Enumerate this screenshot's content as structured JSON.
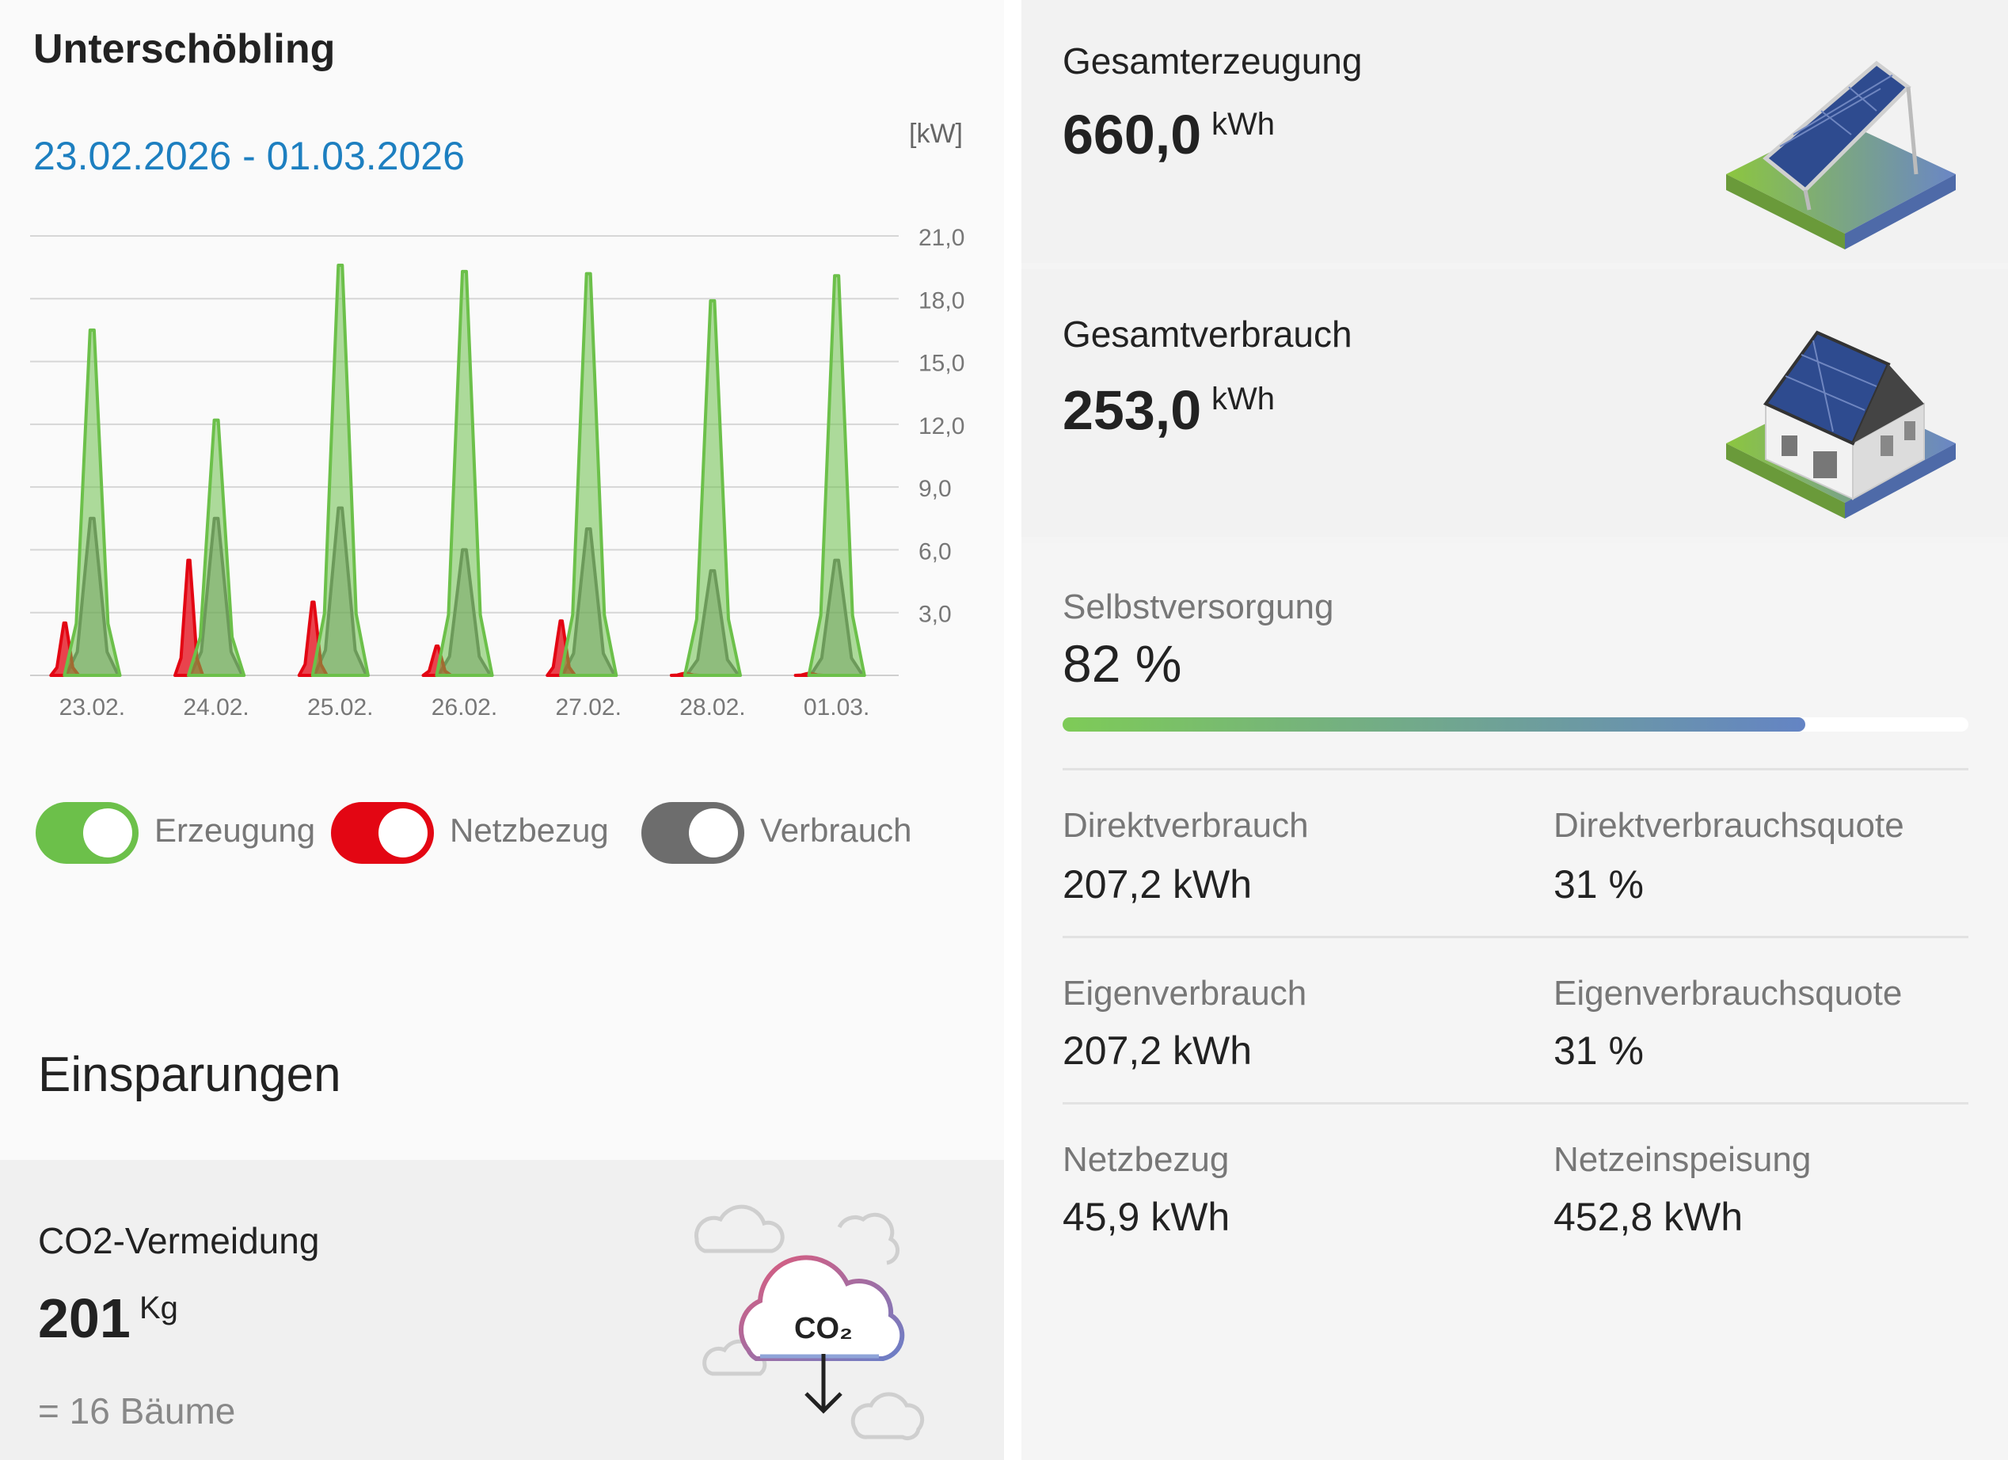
{
  "left": {
    "site_title": "Unterschöbling",
    "date_range": "23.02.2026 - 01.03.2026",
    "unit": "[kW]",
    "legend": [
      {
        "label": "Erzeugung",
        "color": "#6cc04a",
        "on": true
      },
      {
        "label": "Netzbezug",
        "color": "#e30613",
        "on": true
      },
      {
        "label": "Verbrauch",
        "color": "#6d6d6d",
        "on": true
      }
    ],
    "savings_title": "Einsparungen",
    "co2": {
      "title": "CO2-Vermeidung",
      "value": "201",
      "unit": "Kg",
      "trees": "= 16 Bäume",
      "icon_text": "CO₂",
      "icon": "co2-cloud-icon"
    }
  },
  "chart_data": {
    "type": "area",
    "yunit": "[kW]",
    "ylim": [
      0,
      21
    ],
    "yticks": [
      "21,0",
      "18,0",
      "15,0",
      "12,0",
      "9,0",
      "6,0",
      "3,0"
    ],
    "ytick_values": [
      21,
      18,
      15,
      12,
      9,
      6,
      3
    ],
    "categories": [
      "23.02.",
      "24.02.",
      "25.02.",
      "26.02.",
      "27.02.",
      "28.02.",
      "01.03."
    ],
    "grid": true,
    "series": [
      {
        "name": "Erzeugung",
        "color": "#6cc04a",
        "daily_peak_kw": [
          16.5,
          12.2,
          19.6,
          19.3,
          19.2,
          17.9,
          19.1
        ]
      },
      {
        "name": "Netzbezug",
        "color": "#e30613",
        "daily_peak_kw": [
          2.5,
          5.5,
          3.5,
          1.4,
          2.6,
          0.1,
          0.1
        ]
      },
      {
        "name": "Verbrauch",
        "color": "#6d6d6d",
        "daily_peak_kw": [
          7.5,
          7.5,
          8.0,
          6.0,
          7.0,
          5.0,
          5.5
        ]
      }
    ]
  },
  "right": {
    "generation": {
      "title": "Gesamterzeugung",
      "value": "660,0",
      "unit": "kWh",
      "icon": "solar-panel-icon"
    },
    "consumption": {
      "title": "Gesamtverbrauch",
      "value": "253,0",
      "unit": "kWh",
      "icon": "house-solar-icon"
    },
    "self_supply": {
      "title": "Selbstversorgung",
      "value": "82 %",
      "percent": 82
    },
    "stats": [
      {
        "label": "Direktverbrauch",
        "value": "207,2 kWh"
      },
      {
        "label": "Direktverbrauchsquote",
        "value": "31 %"
      },
      {
        "label": "Eigenverbrauch",
        "value": "207,2 kWh"
      },
      {
        "label": "Eigenverbrauchsquote",
        "value": "31 %"
      },
      {
        "label": "Netzbezug",
        "value": "45,9 kWh"
      },
      {
        "label": "Netzeinspeisung",
        "value": "452,8 kWh"
      }
    ]
  }
}
